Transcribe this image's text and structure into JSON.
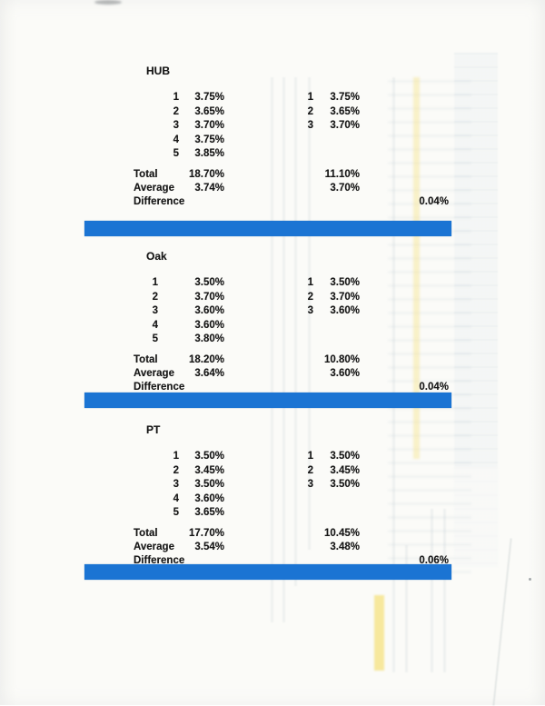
{
  "colors": {
    "divider_bar": "#1b74d3",
    "highlighter_yellow": "#f5e07a",
    "paper": "#fbfbf8"
  },
  "sections": [
    {
      "name": "HUB",
      "left_rows": [
        {
          "index": "1",
          "value": "3.75%"
        },
        {
          "index": "2",
          "value": "3.65%"
        },
        {
          "index": "3",
          "value": "3.70%"
        },
        {
          "index": "4",
          "value": "3.75%"
        },
        {
          "index": "5",
          "value": "3.85%"
        }
      ],
      "right_rows": [
        {
          "index": "1",
          "value": "3.75%"
        },
        {
          "index": "2",
          "value": "3.65%"
        },
        {
          "index": "3",
          "value": "3.70%"
        }
      ],
      "summary": {
        "total_label": "Total",
        "average_label": "Average",
        "difference_label": "Difference",
        "total_left": "18.70%",
        "total_right": "11.10%",
        "average_left": "3.74%",
        "average_right": "3.70%",
        "difference_value": "0.04%"
      }
    },
    {
      "name": "Oak",
      "left_rows": [
        {
          "index": "1",
          "value": "3.50%"
        },
        {
          "index": "2",
          "value": "3.70%"
        },
        {
          "index": "3",
          "value": "3.60%"
        },
        {
          "index": "4",
          "value": "3.60%"
        },
        {
          "index": "5",
          "value": "3.80%"
        }
      ],
      "right_rows": [
        {
          "index": "1",
          "value": "3.50%"
        },
        {
          "index": "2",
          "value": "3.70%"
        },
        {
          "index": "3",
          "value": "3.60%"
        }
      ],
      "summary": {
        "total_label": "Total",
        "average_label": "Average",
        "difference_label": "Difference",
        "total_left": "18.20%",
        "total_right": "10.80%",
        "average_left": "3.64%",
        "average_right": "3.60%",
        "difference_value": "0.04%"
      }
    },
    {
      "name": "PT",
      "left_rows": [
        {
          "index": "1",
          "value": "3.50%"
        },
        {
          "index": "2",
          "value": "3.45%"
        },
        {
          "index": "3",
          "value": "3.50%"
        },
        {
          "index": "4",
          "value": "3.60%"
        },
        {
          "index": "5",
          "value": "3.65%"
        }
      ],
      "right_rows": [
        {
          "index": "1",
          "value": "3.50%"
        },
        {
          "index": "2",
          "value": "3.45%"
        },
        {
          "index": "3",
          "value": "3.50%"
        }
      ],
      "summary": {
        "total_label": "Total",
        "average_label": "Average",
        "difference_label": "Difference",
        "total_left": "17.70%",
        "total_right": "10.45%",
        "average_left": "3.54%",
        "average_right": "3.48%",
        "difference_value": "0.06%"
      }
    }
  ]
}
